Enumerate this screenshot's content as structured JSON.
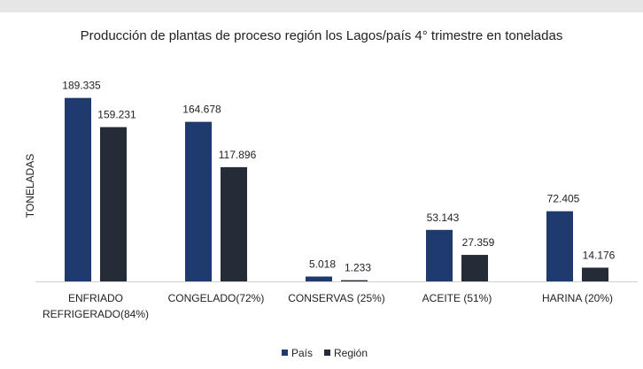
{
  "chart_data": {
    "type": "bar",
    "title": "Producción de plantas de proceso región los Lagos/país 4° trimestre en toneladas",
    "y_label": "TONELADAS",
    "categories": [
      "ENFRIADO REFRIGERADO(84%)",
      "CONGELADO(72%)",
      "CONSERVAS (25%)",
      "ACEITE (51%)",
      "HARINA (20%)"
    ],
    "series": [
      {
        "name": "País",
        "color": "#1f3a6e",
        "values": [
          189335,
          164678,
          5018,
          53143,
          72405
        ],
        "value_labels": [
          "189.335",
          "164.678",
          "5.018",
          "53.143",
          "72.405"
        ]
      },
      {
        "name": "Región",
        "color": "#252c38",
        "values": [
          159231,
          117896,
          1233,
          27359,
          14176
        ],
        "value_labels": [
          "159.231",
          "117.896",
          "1.233",
          "27.359",
          "14.176"
        ]
      }
    ],
    "ylim": [
      0,
      200000
    ],
    "legend": "bottom"
  }
}
